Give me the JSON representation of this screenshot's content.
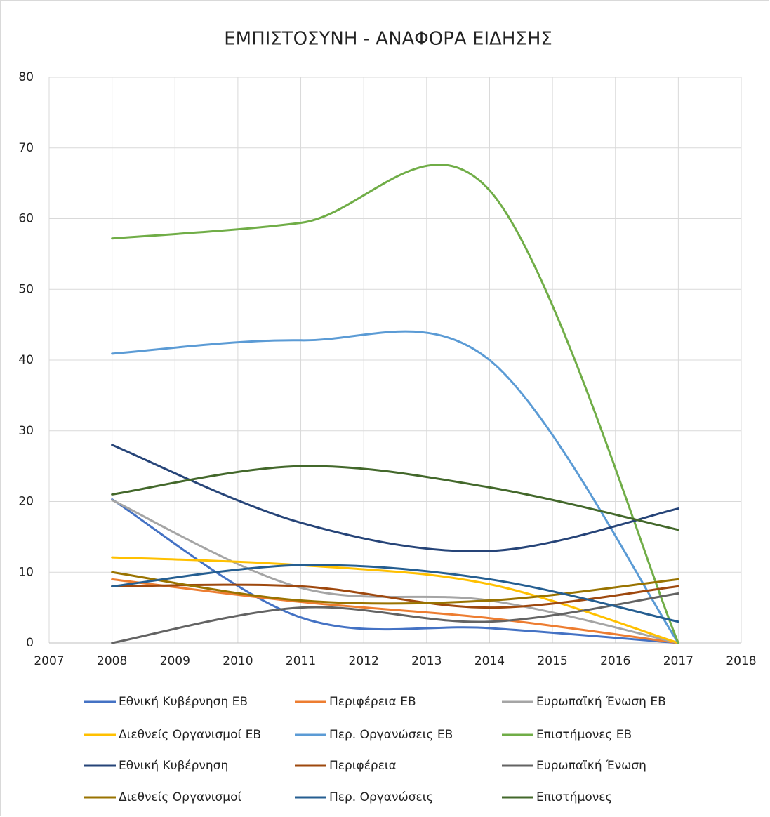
{
  "chart_data": {
    "type": "line",
    "title": "ΕΜΠΙΣΤΟΣΥΝΗ - ΑΝΑΦΟΡΑ ΕΙΔΗΣΗΣ",
    "x": [
      2008,
      2011,
      2014,
      2017
    ],
    "xlim": [
      2007,
      2018
    ],
    "xticks": [
      2007,
      2008,
      2009,
      2010,
      2011,
      2012,
      2013,
      2014,
      2015,
      2016,
      2017,
      2018
    ],
    "ylim": [
      0,
      80
    ],
    "yticks": [
      0,
      10,
      20,
      30,
      40,
      50,
      60,
      70,
      80
    ],
    "grid": true,
    "smooth": true,
    "legend": "bottom",
    "series": [
      {
        "name": "Εθνική Κυβέρνηση ΕΒ",
        "color": "#4472c4",
        "values": [
          20.3,
          3.6,
          2.1,
          0
        ]
      },
      {
        "name": "Περιφέρεια ΕΒ",
        "color": "#ed7d31",
        "values": [
          9,
          5.8,
          3.5,
          0
        ]
      },
      {
        "name": "Ευρωπαϊκή Ένωση ΕΒ",
        "color": "#a5a5a5",
        "values": [
          20.2,
          7.8,
          6,
          0
        ]
      },
      {
        "name": "Διεθνείς Οργανισμοί ΕΒ",
        "color": "#ffc000",
        "values": [
          12.1,
          11,
          8.3,
          0
        ]
      },
      {
        "name": "Περ. Οργανώσεις ΕΒ",
        "color": "#5b9bd5",
        "values": [
          40.9,
          42.8,
          40,
          0
        ]
      },
      {
        "name": "Επιστήμονες ΕΒ",
        "color": "#70ad47",
        "values": [
          57.2,
          59.4,
          64,
          0
        ]
      },
      {
        "name": "Εθνική Κυβέρνηση",
        "color": "#264478",
        "values": [
          28,
          17,
          13,
          19
        ]
      },
      {
        "name": "Περιφέρεια",
        "color": "#9e480e",
        "values": [
          8,
          8,
          5,
          8
        ]
      },
      {
        "name": "Ευρωπαϊκή Ένωση",
        "color": "#636363",
        "values": [
          0,
          5,
          3,
          7
        ]
      },
      {
        "name": "Διεθνείς Οργανισμοί",
        "color": "#997300",
        "values": [
          10,
          6,
          6,
          9
        ]
      },
      {
        "name": "Περ. Οργανώσεις",
        "color": "#255e91",
        "values": [
          8,
          11,
          9,
          3
        ]
      },
      {
        "name": "Επιστήμονες",
        "color": "#43682b",
        "values": [
          21,
          25,
          22,
          16
        ]
      }
    ]
  }
}
